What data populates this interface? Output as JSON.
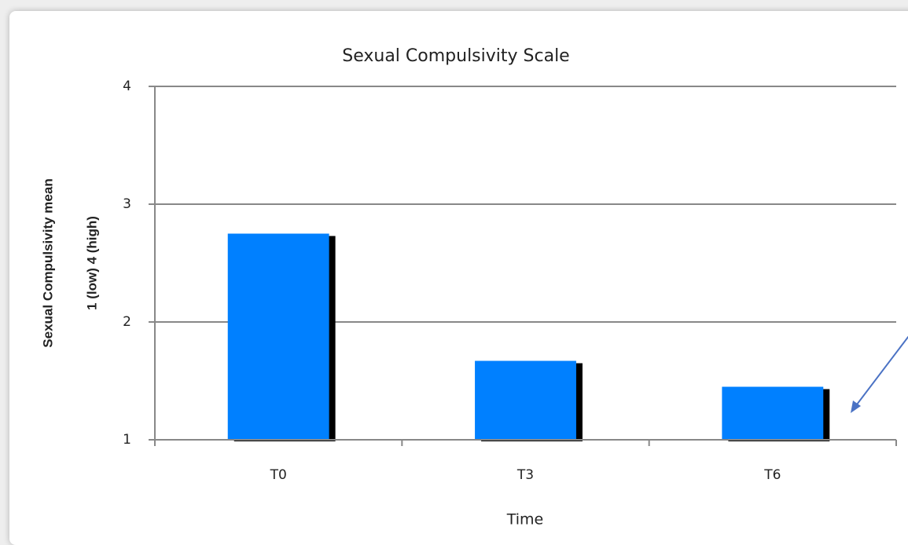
{
  "chart_data": {
    "type": "bar",
    "title": "Sexual Compulsivity Scale",
    "xlabel": "Time",
    "ylabel": [
      "Sexual Compulsivity mean",
      "1 (low) 4 (high)"
    ],
    "categories": [
      "T0",
      "T3",
      "T6"
    ],
    "values": [
      2.75,
      1.67,
      1.45
    ],
    "color": "#0080ff",
    "shadow_color": "#000000",
    "ylim": [
      1,
      4
    ],
    "yticks": [
      1,
      2,
      3,
      4
    ],
    "grid": true
  }
}
